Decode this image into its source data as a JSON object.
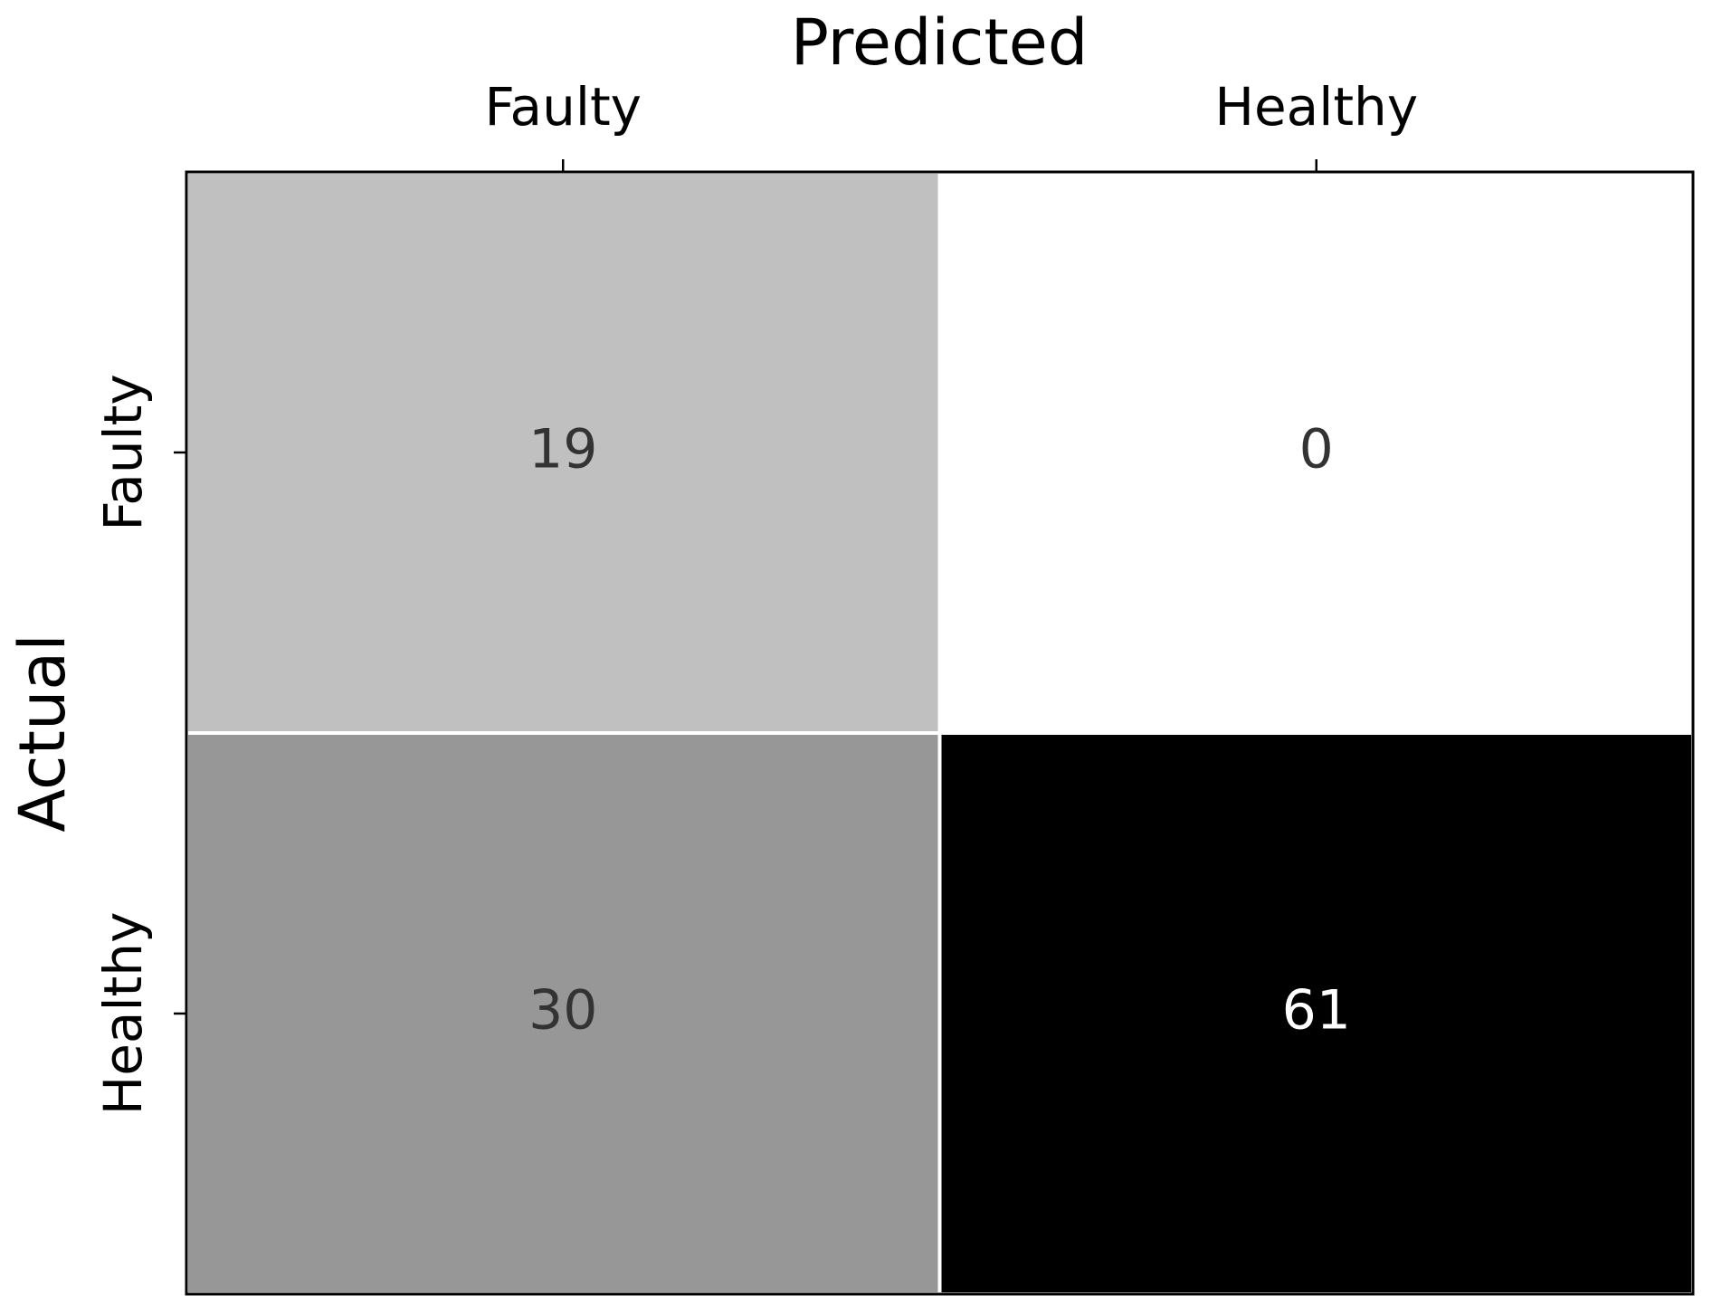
{
  "chart_data": {
    "type": "heatmap",
    "title": "Predicted",
    "ylabel": "Actual",
    "x_categories": [
      "Faulty",
      "Healthy"
    ],
    "y_categories": [
      "Faulty",
      "Healthy"
    ],
    "values": [
      [
        19,
        0
      ],
      [
        30,
        61
      ]
    ],
    "cell_colors": [
      [
        "#c0c0c0",
        "#ffffff"
      ],
      [
        "#979797",
        "#000000"
      ]
    ],
    "x_axis_position": "top"
  }
}
